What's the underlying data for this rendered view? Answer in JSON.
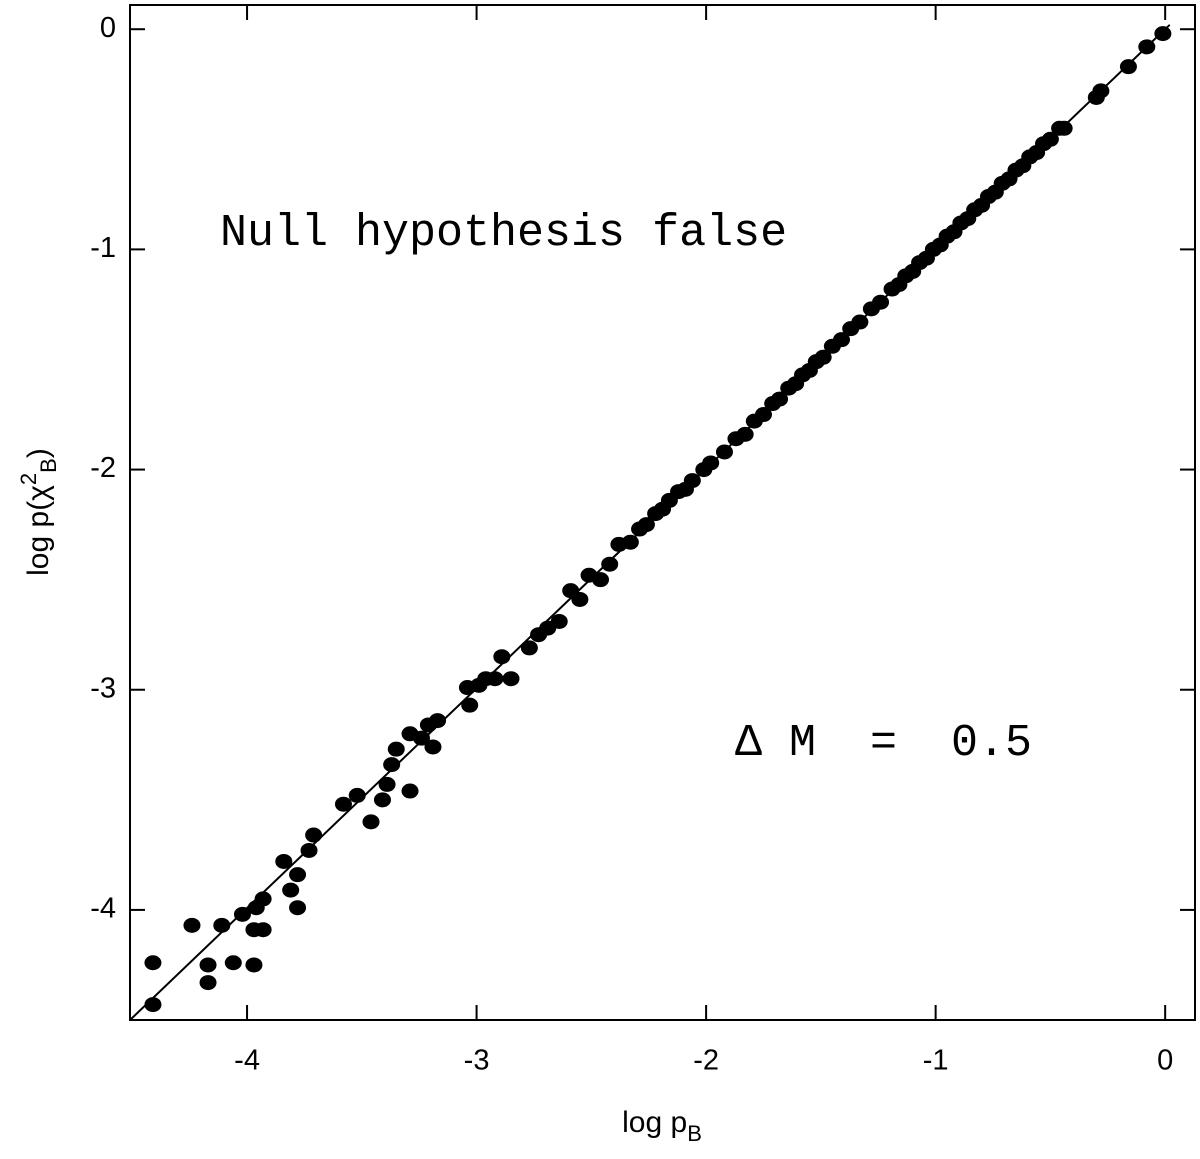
{
  "chart_data": {
    "type": "scatter",
    "xlabel": {
      "main": "log p",
      "sub": "B"
    },
    "ylabel": {
      "main": "log p(χ",
      "sup": "2",
      "sub": "B",
      "end": ")"
    },
    "annotations": [
      "Null hypothesis false",
      "Δ M  =  0.5"
    ],
    "xlim": [
      -4.51,
      0.13
    ],
    "ylim": [
      -4.5,
      0.11
    ],
    "xticks": [
      -4,
      -3,
      -2,
      -1,
      0
    ],
    "yticks": [
      0,
      -1,
      -2,
      -3,
      -4
    ],
    "color": "#000000",
    "reference_line": {
      "x": [
        -4.51,
        0.02
      ],
      "y": [
        -4.5,
        0.02
      ]
    },
    "x": [
      -4.41,
      -4.41,
      -4.24,
      -4.17,
      -4.17,
      -4.11,
      -4.06,
      -4.02,
      -3.97,
      -3.97,
      -3.93,
      -3.96,
      -3.93,
      -3.84,
      -3.81,
      -3.78,
      -3.78,
      -3.73,
      -3.71,
      -3.58,
      -3.52,
      -3.46,
      -3.41,
      -3.39,
      -3.37,
      -3.35,
      -3.29,
      -3.29,
      -3.24,
      -3.21,
      -3.19,
      -3.17,
      -3.04,
      -3.03,
      -2.99,
      -2.96,
      -2.92,
      -2.89,
      -2.85,
      -2.77,
      -2.73,
      -2.69,
      -2.64,
      -2.59,
      -2.55,
      -2.51,
      -2.46,
      -2.42,
      -2.38,
      -2.33,
      -2.29,
      -2.26,
      -2.22,
      -2.19,
      -2.16,
      -2.12,
      -2.09,
      -2.06,
      -2.01,
      -1.98,
      -1.92,
      -1.87,
      -1.83,
      -1.79,
      -1.75,
      -1.71,
      -1.68,
      -1.64,
      -1.61,
      -1.58,
      -1.55,
      -1.52,
      -1.49,
      -1.45,
      -1.41,
      -1.37,
      -1.33,
      -1.28,
      -1.24,
      -1.19,
      -1.16,
      -1.13,
      -1.1,
      -1.07,
      -1.04,
      -1.01,
      -0.98,
      -0.95,
      -0.92,
      -0.89,
      -0.86,
      -0.83,
      -0.8,
      -0.77,
      -0.74,
      -0.71,
      -0.68,
      -0.65,
      -0.62,
      -0.59,
      -0.56,
      -0.53,
      -0.5,
      -0.46,
      -0.44,
      -0.3,
      -0.28,
      -0.16,
      -0.08,
      -0.01
    ],
    "y": [
      -4.43,
      -4.24,
      -4.07,
      -4.25,
      -4.33,
      -4.07,
      -4.24,
      -4.02,
      -4.25,
      -4.09,
      -4.09,
      -3.99,
      -3.95,
      -3.78,
      -3.91,
      -3.84,
      -3.99,
      -3.73,
      -3.66,
      -3.52,
      -3.48,
      -3.6,
      -3.5,
      -3.43,
      -3.34,
      -3.27,
      -3.46,
      -3.2,
      -3.22,
      -3.16,
      -3.26,
      -3.14,
      -2.99,
      -3.07,
      -2.98,
      -2.95,
      -2.95,
      -2.85,
      -2.95,
      -2.81,
      -2.75,
      -2.72,
      -2.69,
      -2.55,
      -2.59,
      -2.48,
      -2.5,
      -2.43,
      -2.34,
      -2.33,
      -2.27,
      -2.25,
      -2.2,
      -2.18,
      -2.14,
      -2.1,
      -2.09,
      -2.05,
      -2.0,
      -1.97,
      -1.92,
      -1.86,
      -1.84,
      -1.78,
      -1.75,
      -1.7,
      -1.68,
      -1.63,
      -1.61,
      -1.57,
      -1.55,
      -1.51,
      -1.49,
      -1.44,
      -1.41,
      -1.36,
      -1.33,
      -1.27,
      -1.24,
      -1.18,
      -1.16,
      -1.12,
      -1.1,
      -1.06,
      -1.04,
      -1.0,
      -0.98,
      -0.94,
      -0.92,
      -0.88,
      -0.86,
      -0.82,
      -0.8,
      -0.76,
      -0.74,
      -0.7,
      -0.68,
      -0.64,
      -0.62,
      -0.58,
      -0.56,
      -0.52,
      -0.5,
      -0.45,
      -0.45,
      -0.31,
      -0.28,
      -0.17,
      -0.08,
      -0.02
    ]
  }
}
